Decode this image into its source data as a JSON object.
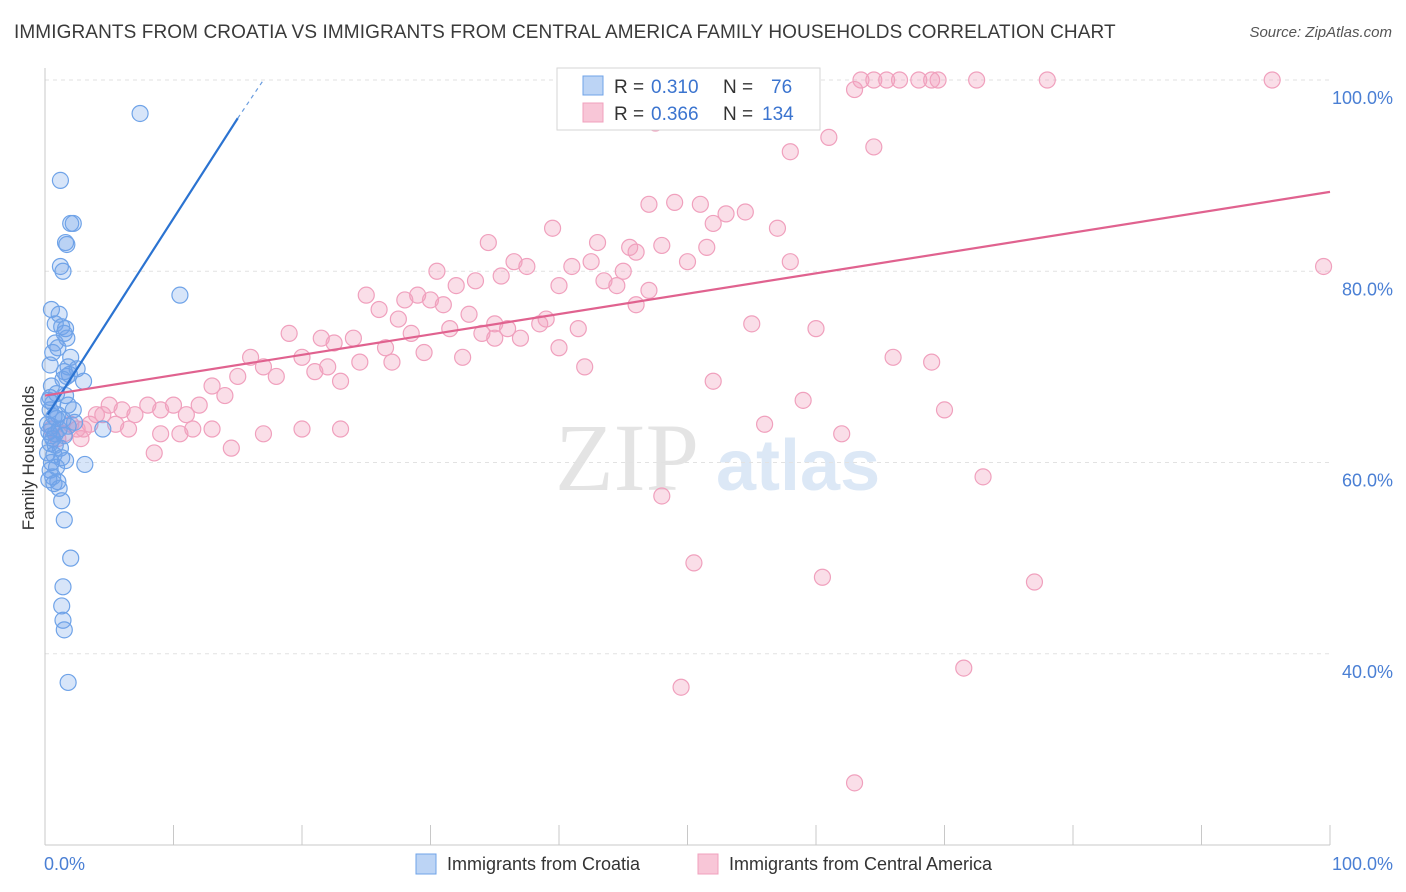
{
  "chart_data": {
    "type": "scatter",
    "title": "IMMIGRANTS FROM CROATIA VS IMMIGRANTS FROM CENTRAL AMERICA FAMILY HOUSEHOLDS CORRELATION CHART",
    "source": "Source: ZipAtlas.com",
    "ylabel": "Family Households",
    "xlabel": "",
    "x_tick_labels": [
      "0.0%",
      "100.0%"
    ],
    "y_tick_labels": [
      "40.0%",
      "60.0%",
      "80.0%",
      "100.0%"
    ],
    "xlim": [
      0,
      100
    ],
    "ylim": [
      18,
      100
    ],
    "grid": true,
    "watermark": {
      "zip": "ZIP",
      "atlas": "atlas"
    },
    "legend_position": "top-center",
    "stats": [
      {
        "r_label": "R =",
        "r_value": "0.310",
        "n_label": "N =",
        "n_value": "76"
      },
      {
        "r_label": "R =",
        "r_value": "0.366",
        "n_label": "N =",
        "n_value": "134"
      }
    ],
    "series": [
      {
        "name": "Immigrants from Croatia",
        "color": "#6fa3e8",
        "line_color": "#2b73d1",
        "trend": {
          "x": [
            0.2,
            15.0
          ],
          "y": [
            65.0,
            96.0
          ],
          "dash_to": [
            17.0,
            100.0
          ]
        },
        "points": [
          [
            7.4,
            96.5
          ],
          [
            1.2,
            89.5
          ],
          [
            2.0,
            85.0
          ],
          [
            2.2,
            85.0
          ],
          [
            1.6,
            83.0
          ],
          [
            1.7,
            82.8
          ],
          [
            1.2,
            80.5
          ],
          [
            1.4,
            80.0
          ],
          [
            10.5,
            77.5
          ],
          [
            0.5,
            76.0
          ],
          [
            1.1,
            75.5
          ],
          [
            0.8,
            74.5
          ],
          [
            1.3,
            74.2
          ],
          [
            1.6,
            74.0
          ],
          [
            1.5,
            73.5
          ],
          [
            1.7,
            73.0
          ],
          [
            0.8,
            72.5
          ],
          [
            1.0,
            72.0
          ],
          [
            0.6,
            71.5
          ],
          [
            2.0,
            71.0
          ],
          [
            1.8,
            70.0
          ],
          [
            0.4,
            70.2
          ],
          [
            2.5,
            69.8
          ],
          [
            1.9,
            69.2
          ],
          [
            1.5,
            69.5
          ],
          [
            1.7,
            69.0
          ],
          [
            3.0,
            68.5
          ],
          [
            1.4,
            68.7
          ],
          [
            0.5,
            68.0
          ],
          [
            0.9,
            67.2
          ],
          [
            1.6,
            67.0
          ],
          [
            0.3,
            66.5
          ],
          [
            0.6,
            66.2
          ],
          [
            1.8,
            66.0
          ],
          [
            2.2,
            65.5
          ],
          [
            0.4,
            65.5
          ],
          [
            1.0,
            65.0
          ],
          [
            0.7,
            64.8
          ],
          [
            1.4,
            64.5
          ],
          [
            0.2,
            64.0
          ],
          [
            0.5,
            63.8
          ],
          [
            1.1,
            63.5
          ],
          [
            0.3,
            63.2
          ],
          [
            0.8,
            63.0
          ],
          [
            1.5,
            62.8
          ],
          [
            0.6,
            62.5
          ],
          [
            0.4,
            62.0
          ],
          [
            1.2,
            61.5
          ],
          [
            0.2,
            61.0
          ],
          [
            0.7,
            60.8
          ],
          [
            1.3,
            60.5
          ],
          [
            1.6,
            60.2
          ],
          [
            0.5,
            60.0
          ],
          [
            3.1,
            59.8
          ],
          [
            0.9,
            59.5
          ],
          [
            0.4,
            59.2
          ],
          [
            0.6,
            58.5
          ],
          [
            0.3,
            58.2
          ],
          [
            1.0,
            58.0
          ],
          [
            0.7,
            57.8
          ],
          [
            1.1,
            57.3
          ],
          [
            1.3,
            56.0
          ],
          [
            1.5,
            54.0
          ],
          [
            2.0,
            50.0
          ],
          [
            1.4,
            47.0
          ],
          [
            1.3,
            45.0
          ],
          [
            1.4,
            43.5
          ],
          [
            1.5,
            42.5
          ],
          [
            1.8,
            37.0
          ],
          [
            4.5,
            63.5
          ],
          [
            0.4,
            66.8
          ],
          [
            1.8,
            63.8
          ],
          [
            0.8,
            61.8
          ],
          [
            0.5,
            62.8
          ],
          [
            2.3,
            64.2
          ],
          [
            0.9,
            64.6
          ]
        ]
      },
      {
        "name": "Immigrants from Central America",
        "color": "#f0a0bd",
        "line_color": "#e0628f",
        "trend": {
          "x": [
            0.0,
            100.0
          ],
          "y": [
            67.0,
            88.3
          ]
        },
        "points": [
          [
            55.5,
            100.0
          ],
          [
            56.5,
            100.0
          ],
          [
            63.5,
            100.0
          ],
          [
            64.5,
            100.0
          ],
          [
            65.5,
            100.0
          ],
          [
            66.5,
            100.0
          ],
          [
            68.0,
            100.0
          ],
          [
            69.0,
            100.0
          ],
          [
            69.5,
            100.0
          ],
          [
            72.5,
            100.0
          ],
          [
            78.0,
            100.0
          ],
          [
            95.5,
            100.0
          ],
          [
            63.0,
            99.0
          ],
          [
            47.5,
            95.5
          ],
          [
            61.0,
            94.0
          ],
          [
            64.5,
            93.0
          ],
          [
            58.0,
            92.5
          ],
          [
            47.0,
            87.0
          ],
          [
            49.0,
            87.2
          ],
          [
            51.0,
            87.0
          ],
          [
            52.0,
            85.0
          ],
          [
            53.0,
            86.0
          ],
          [
            54.5,
            86.2
          ],
          [
            57.0,
            84.5
          ],
          [
            39.5,
            84.5
          ],
          [
            43.0,
            83.0
          ],
          [
            45.5,
            82.5
          ],
          [
            46.0,
            82.0
          ],
          [
            48.0,
            82.7
          ],
          [
            50.0,
            81.0
          ],
          [
            51.5,
            82.5
          ],
          [
            58.0,
            81.0
          ],
          [
            34.5,
            83.0
          ],
          [
            36.5,
            81.0
          ],
          [
            37.5,
            80.5
          ],
          [
            41.0,
            80.5
          ],
          [
            42.5,
            81.0
          ],
          [
            43.5,
            79.0
          ],
          [
            45.0,
            80.0
          ],
          [
            30.5,
            80.0
          ],
          [
            32.0,
            78.5
          ],
          [
            33.5,
            79.0
          ],
          [
            35.5,
            79.5
          ],
          [
            40.0,
            78.5
          ],
          [
            44.5,
            78.5
          ],
          [
            29.0,
            77.5
          ],
          [
            30.0,
            77.0
          ],
          [
            25.0,
            77.5
          ],
          [
            26.0,
            76.0
          ],
          [
            28.0,
            77.0
          ],
          [
            31.0,
            76.5
          ],
          [
            27.5,
            75.0
          ],
          [
            33.0,
            75.5
          ],
          [
            35.0,
            74.5
          ],
          [
            39.0,
            75.0
          ],
          [
            41.5,
            74.0
          ],
          [
            19.0,
            73.5
          ],
          [
            21.5,
            73.0
          ],
          [
            22.5,
            72.5
          ],
          [
            24.0,
            73.0
          ],
          [
            26.5,
            72.0
          ],
          [
            28.5,
            73.5
          ],
          [
            31.5,
            74.0
          ],
          [
            34.0,
            73.5
          ],
          [
            37.0,
            73.0
          ],
          [
            38.5,
            74.5
          ],
          [
            20.0,
            71.0
          ],
          [
            22.0,
            70.0
          ],
          [
            24.5,
            70.5
          ],
          [
            27.0,
            70.5
          ],
          [
            29.5,
            71.5
          ],
          [
            32.5,
            71.0
          ],
          [
            16.0,
            71.0
          ],
          [
            17.0,
            70.0
          ],
          [
            18.0,
            69.0
          ],
          [
            21.0,
            69.5
          ],
          [
            23.0,
            68.5
          ],
          [
            15.0,
            69.0
          ],
          [
            13.0,
            68.0
          ],
          [
            14.0,
            67.0
          ],
          [
            12.0,
            66.0
          ],
          [
            10.0,
            66.0
          ],
          [
            11.0,
            65.0
          ],
          [
            9.0,
            65.5
          ],
          [
            8.0,
            66.0
          ],
          [
            7.0,
            65.0
          ],
          [
            6.0,
            65.5
          ],
          [
            5.0,
            66.0
          ],
          [
            4.0,
            65.0
          ],
          [
            3.5,
            64.0
          ],
          [
            3.0,
            63.5
          ],
          [
            2.5,
            63.5
          ],
          [
            2.0,
            64.0
          ],
          [
            1.5,
            63.0
          ],
          [
            1.0,
            62.5
          ],
          [
            0.5,
            63.5
          ],
          [
            2.8,
            62.5
          ],
          [
            4.5,
            65.0
          ],
          [
            5.5,
            64.0
          ],
          [
            6.5,
            63.5
          ],
          [
            9.0,
            63.0
          ],
          [
            13.0,
            63.5
          ],
          [
            17.0,
            63.0
          ],
          [
            20.0,
            63.5
          ],
          [
            23.0,
            63.5
          ],
          [
            11.5,
            63.5
          ],
          [
            14.5,
            61.5
          ],
          [
            10.5,
            63.0
          ],
          [
            8.5,
            61.0
          ],
          [
            35.0,
            73.0
          ],
          [
            40.0,
            72.0
          ],
          [
            55.0,
            74.5
          ],
          [
            60.0,
            74.0
          ],
          [
            59.0,
            66.5
          ],
          [
            62.0,
            63.0
          ],
          [
            56.0,
            64.0
          ],
          [
            70.0,
            65.5
          ],
          [
            48.0,
            56.5
          ],
          [
            73.0,
            58.5
          ],
          [
            50.5,
            49.5
          ],
          [
            60.5,
            48.0
          ],
          [
            77.0,
            47.5
          ],
          [
            71.5,
            38.5
          ],
          [
            49.5,
            36.5
          ],
          [
            63.0,
            26.5
          ],
          [
            99.5,
            80.5
          ],
          [
            52.0,
            68.5
          ],
          [
            42.0,
            70.0
          ],
          [
            46.0,
            76.5
          ],
          [
            47.0,
            78.0
          ],
          [
            66.0,
            71.0
          ],
          [
            69.0,
            70.5
          ],
          [
            36.0,
            74.0
          ]
        ]
      }
    ]
  }
}
